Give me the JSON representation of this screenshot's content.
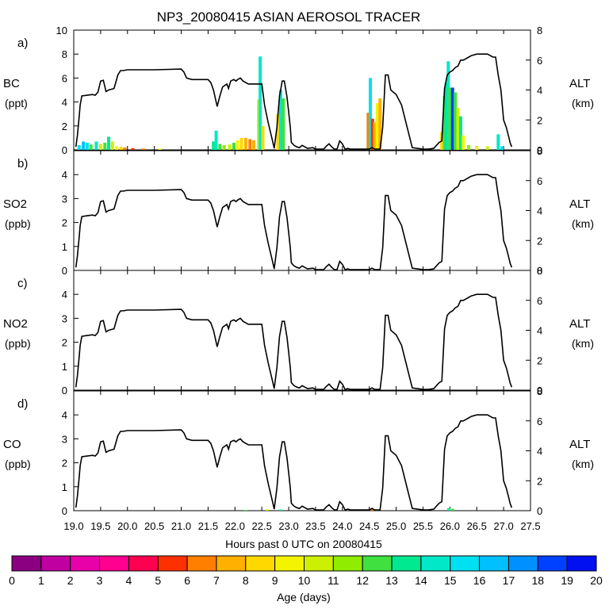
{
  "chart_data": {
    "type": "line",
    "title": "NP3_20080415 ASIAN AEROSOL TRACER",
    "xlabel": "Hours past 0 UTC on 20080415",
    "xlim": [
      19.0,
      27.5
    ],
    "xticks": [
      "19.0",
      "19.5",
      "20.0",
      "20.5",
      "21.0",
      "21.5",
      "22.0",
      "22.5",
      "23.0",
      "23.5",
      "24.0",
      "24.5",
      "25.0",
      "25.5",
      "26.0",
      "26.5",
      "27.0",
      "27.5"
    ],
    "right_axis_label": "ALT",
    "right_axis_unit": "(km)",
    "right_ylim": [
      0,
      8
    ],
    "right_yticks": [
      "0",
      "2",
      "4",
      "6",
      "8"
    ],
    "altitude_km": {
      "x": [
        19.04,
        19.07,
        19.1,
        19.12,
        19.15,
        19.25,
        19.35,
        19.4,
        19.45,
        19.5,
        19.55,
        19.6,
        19.65,
        19.75,
        19.82,
        19.87,
        19.92,
        20.0,
        20.5,
        21.0,
        21.05,
        21.1,
        21.2,
        21.5,
        21.55,
        21.6,
        21.65,
        21.67,
        21.72,
        21.77,
        21.85,
        21.88,
        21.92,
        21.98,
        22.02,
        22.05,
        22.1,
        22.15,
        22.2,
        22.25,
        22.3,
        22.35,
        22.42,
        22.5,
        22.55,
        22.62,
        22.7,
        22.73,
        22.78,
        22.83,
        22.85,
        22.88,
        22.92,
        22.97,
        23.0,
        23.03,
        23.05,
        23.1,
        23.15,
        23.2,
        23.25,
        23.3,
        23.35,
        23.45,
        23.5,
        23.6,
        23.65,
        23.7,
        23.75,
        23.8,
        23.85,
        23.9,
        23.95,
        24.0,
        24.05,
        24.1,
        24.15,
        24.2,
        24.25,
        24.3,
        24.35,
        24.4,
        24.45,
        24.5,
        24.55,
        24.6,
        24.65,
        24.7,
        24.75,
        24.8,
        24.85,
        24.9,
        25.0,
        25.1,
        25.3,
        25.5,
        25.6,
        25.7,
        25.75,
        25.8,
        25.85,
        25.9,
        25.95,
        26.0,
        26.05,
        26.1,
        26.15,
        26.2,
        26.25,
        26.3,
        26.35,
        26.4,
        26.5,
        26.6,
        26.7,
        26.75,
        26.8,
        26.85,
        26.9,
        26.95,
        27.0,
        27.05,
        27.1,
        27.12,
        27.15
      ],
      "values": [
        0.2,
        1.0,
        2.2,
        3.0,
        3.6,
        3.65,
        3.7,
        3.65,
        3.85,
        4.6,
        4.65,
        3.9,
        4.0,
        4.1,
        5.0,
        5.3,
        5.3,
        5.35,
        5.35,
        5.4,
        5.2,
        4.8,
        4.7,
        4.7,
        4.5,
        4.0,
        3.2,
        2.9,
        3.6,
        4.2,
        4.4,
        4.1,
        4.6,
        4.7,
        4.6,
        4.7,
        4.8,
        4.6,
        4.5,
        4.4,
        4.4,
        4.4,
        4.4,
        4.4,
        3.0,
        1.8,
        0.6,
        0.1,
        1.5,
        3.6,
        4.0,
        4.6,
        4.6,
        3.5,
        2.5,
        1.5,
        0.5,
        0.3,
        0.2,
        0.15,
        0.3,
        0.2,
        0.1,
        0.15,
        0.05,
        0.05,
        0.05,
        0.25,
        0.4,
        0.2,
        0.05,
        0.05,
        0.6,
        0.4,
        0.05,
        0.1,
        0.05,
        0.05,
        0.05,
        0.05,
        0.05,
        0.05,
        0.05,
        0.05,
        0.15,
        0.05,
        0.05,
        0.05,
        1.5,
        5.0,
        5.0,
        4.0,
        3.7,
        3.0,
        0.15,
        0.05,
        0.05,
        0.1,
        0.3,
        0.5,
        0.6,
        4.1,
        5.0,
        5.2,
        5.3,
        5.5,
        5.6,
        6.0,
        6.0,
        6.1,
        6.2,
        6.3,
        6.4,
        6.4,
        6.4,
        6.3,
        6.2,
        6.2,
        5.0,
        4.0,
        2.0,
        1.5,
        0.8,
        0.5,
        0.2
      ]
    },
    "panels": [
      {
        "letter": "a)",
        "species": "BC",
        "unit": "(ppt)",
        "ylim": [
          0,
          10
        ],
        "yticks": [
          "0",
          "2",
          "4",
          "6",
          "8",
          "10"
        ]
      },
      {
        "letter": "b)",
        "species": "SO2",
        "unit": "(ppb)",
        "ylim": [
          0,
          5
        ],
        "yticks": [
          "0",
          "1",
          "2",
          "3",
          "4"
        ]
      },
      {
        "letter": "c)",
        "species": "NO2",
        "unit": "(ppb)",
        "ylim": [
          0,
          5
        ],
        "yticks": [
          "0",
          "1",
          "2",
          "3",
          "4"
        ]
      },
      {
        "letter": "d)",
        "species": "CO",
        "unit": "(ppb)",
        "ylim": [
          0,
          5
        ],
        "yticks": [
          "0",
          "1",
          "2",
          "3",
          "4"
        ]
      }
    ],
    "tracer_bars": [
      {
        "panel": 0,
        "x": 19.1,
        "value": 0.4,
        "age": 15
      },
      {
        "panel": 0,
        "x": 19.18,
        "value": 0.7,
        "age": 16
      },
      {
        "panel": 0,
        "x": 19.25,
        "value": 0.6,
        "age": 15
      },
      {
        "panel": 0,
        "x": 19.32,
        "value": 0.45,
        "age": 12
      },
      {
        "panel": 0,
        "x": 19.42,
        "value": 0.7,
        "age": 14
      },
      {
        "panel": 0,
        "x": 19.5,
        "value": 0.5,
        "age": 10
      },
      {
        "panel": 0,
        "x": 19.58,
        "value": 0.6,
        "age": 12
      },
      {
        "panel": 0,
        "x": 19.65,
        "value": 1.1,
        "age": 13
      },
      {
        "panel": 0,
        "x": 19.72,
        "value": 0.7,
        "age": 10
      },
      {
        "panel": 0,
        "x": 19.8,
        "value": 0.3,
        "age": 9
      },
      {
        "panel": 0,
        "x": 19.88,
        "value": 0.25,
        "age": 8
      },
      {
        "panel": 0,
        "x": 19.95,
        "value": 0.2,
        "age": 6
      },
      {
        "panel": 0,
        "x": 20.1,
        "value": 0.15,
        "age": 5
      },
      {
        "panel": 0,
        "x": 20.3,
        "value": 0.1,
        "age": 6
      },
      {
        "panel": 0,
        "x": 20.6,
        "value": 0.1,
        "age": 9
      },
      {
        "panel": 0,
        "x": 21.6,
        "value": 0.7,
        "age": 13
      },
      {
        "panel": 0,
        "x": 21.65,
        "value": 1.6,
        "age": 14
      },
      {
        "panel": 0,
        "x": 21.72,
        "value": 0.5,
        "age": 12
      },
      {
        "panel": 0,
        "x": 21.8,
        "value": 0.4,
        "age": 11
      },
      {
        "panel": 0,
        "x": 21.9,
        "value": 0.45,
        "age": 10
      },
      {
        "panel": 0,
        "x": 21.98,
        "value": 0.6,
        "age": 12
      },
      {
        "panel": 0,
        "x": 22.05,
        "value": 0.8,
        "age": 9
      },
      {
        "panel": 0,
        "x": 22.12,
        "value": 1.0,
        "age": 8
      },
      {
        "panel": 0,
        "x": 22.2,
        "value": 1.0,
        "age": 7
      },
      {
        "panel": 0,
        "x": 22.28,
        "value": 0.9,
        "age": 6
      },
      {
        "panel": 0,
        "x": 22.35,
        "value": 0.8,
        "age": 7
      },
      {
        "panel": 0,
        "x": 22.44,
        "value": 4.2,
        "age": 10
      },
      {
        "panel": 0,
        "x": 22.47,
        "value": 7.8,
        "age": 14
      },
      {
        "panel": 0,
        "x": 22.52,
        "value": 2.0,
        "age": 8
      },
      {
        "panel": 0,
        "x": 22.8,
        "value": 3.0,
        "age": 8
      },
      {
        "panel": 0,
        "x": 22.85,
        "value": 5.0,
        "age": 14
      },
      {
        "panel": 0,
        "x": 22.9,
        "value": 4.3,
        "age": 12
      },
      {
        "panel": 0,
        "x": 24.48,
        "value": 3.1,
        "age": 6
      },
      {
        "panel": 0,
        "x": 24.52,
        "value": 6.0,
        "age": 15
      },
      {
        "panel": 0,
        "x": 24.56,
        "value": 2.6,
        "age": 5
      },
      {
        "panel": 0,
        "x": 24.6,
        "value": 2.3,
        "age": 7
      },
      {
        "panel": 0,
        "x": 24.65,
        "value": 3.9,
        "age": 9
      },
      {
        "panel": 0,
        "x": 24.7,
        "value": 4.3,
        "age": 7
      },
      {
        "panel": 0,
        "x": 25.85,
        "value": 1.5,
        "age": 8
      },
      {
        "panel": 0,
        "x": 25.9,
        "value": 4.5,
        "age": 12
      },
      {
        "panel": 0,
        "x": 25.93,
        "value": 5.6,
        "age": 13
      },
      {
        "panel": 0,
        "x": 25.97,
        "value": 7.4,
        "age": 14
      },
      {
        "panel": 0,
        "x": 26.0,
        "value": 5.2,
        "age": 12
      },
      {
        "panel": 0,
        "x": 26.05,
        "value": 5.2,
        "age": 18
      },
      {
        "panel": 0,
        "x": 26.1,
        "value": 4.8,
        "age": 12
      },
      {
        "panel": 0,
        "x": 26.15,
        "value": 3.5,
        "age": 10
      },
      {
        "panel": 0,
        "x": 26.2,
        "value": 2.8,
        "age": 13
      },
      {
        "panel": 0,
        "x": 26.25,
        "value": 1.2,
        "age": 9
      },
      {
        "panel": 0,
        "x": 26.35,
        "value": 0.4,
        "age": 11
      },
      {
        "panel": 0,
        "x": 26.5,
        "value": 0.3,
        "age": 9
      },
      {
        "panel": 0,
        "x": 26.7,
        "value": 0.3,
        "age": 10
      },
      {
        "panel": 0,
        "x": 26.9,
        "value": 1.3,
        "age": 14
      },
      {
        "panel": 0,
        "x": 26.97,
        "value": 0.3,
        "age": 15
      },
      {
        "panel": 3,
        "x": 22.2,
        "value": 0.03,
        "age": 12
      },
      {
        "panel": 3,
        "x": 22.6,
        "value": 0.05,
        "age": 10
      },
      {
        "panel": 3,
        "x": 22.85,
        "value": 0.05,
        "age": 13
      },
      {
        "panel": 3,
        "x": 24.55,
        "value": 0.1,
        "age": 6
      },
      {
        "panel": 3,
        "x": 24.65,
        "value": 0.05,
        "age": 9
      },
      {
        "panel": 3,
        "x": 25.98,
        "value": 0.1,
        "age": 13
      },
      {
        "panel": 3,
        "x": 26.05,
        "value": 0.08,
        "age": 12
      }
    ],
    "colorbar": {
      "label": "Age (days)",
      "ticks": [
        "0",
        "1",
        "2",
        "3",
        "4",
        "5",
        "6",
        "7",
        "8",
        "9",
        "10",
        "11",
        "12",
        "13",
        "14",
        "15",
        "16",
        "17",
        "18",
        "19",
        "20"
      ],
      "colors": [
        "#8b0080",
        "#c000a0",
        "#e800a8",
        "#ff0090",
        "#ff0050",
        "#ff3000",
        "#ff8000",
        "#ffb000",
        "#ffd800",
        "#f4f400",
        "#ccf000",
        "#90ec00",
        "#40e040",
        "#00e890",
        "#00e8c8",
        "#00e0f0",
        "#00c0ff",
        "#0090ff",
        "#0040ff",
        "#0010f0"
      ]
    }
  }
}
